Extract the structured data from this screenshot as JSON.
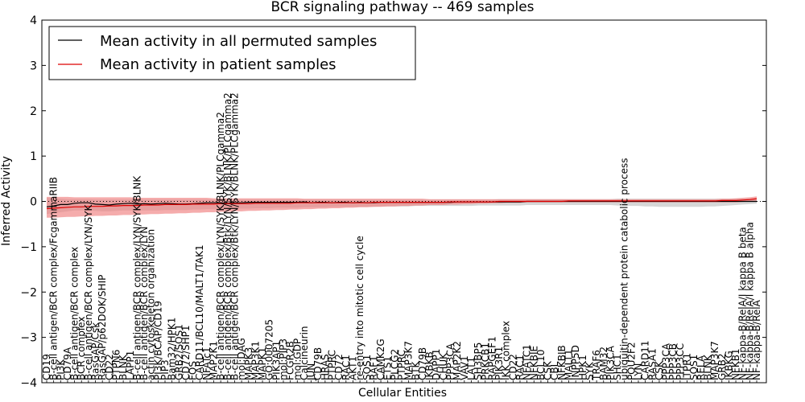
{
  "chart_data": {
    "type": "line",
    "title": "BCR signaling pathway -- 469 samples",
    "xlabel": "Cellular Entities",
    "ylabel": "Inferred Activity",
    "ylim": [
      -4,
      4
    ],
    "yticks": [
      -4,
      -3,
      -2,
      -1,
      0,
      1,
      2,
      3,
      4
    ],
    "grid": false,
    "legend_position": "top-left",
    "reference_line": 0,
    "colors": {
      "permuted_line": "#000000",
      "patient_line": "#dd0000",
      "permuted_band": "#c8c8c8",
      "patient_band": "#f08080"
    },
    "categories": [
      "CD19",
      "B-cell antigen/BCR complex/FcgammaRIIB",
      "PI3K",
      "CD79A",
      "B-cell antigen/BCR complex",
      "BCR complex",
      "B-cell antigen/BCR complex/LYN/SYK",
      "RasGAP/Csk",
      "RasGAP/p62DOK/SHIP",
      "CD22",
      "PTPN6",
      "BLNK",
      "LAPP1",
      "B-cell antigen/BCR complex/LYN/SYK/BLNK",
      "B-cell antigen/BCR complex/LYN",
      "actin cytoskeleton organization",
      "PI3K/BCAP/CD19",
      "PIP3",
      "Bam32/HPK1",
      "GRB2/SOS1",
      "CD72/SHP1",
      "FOS",
      "CARD11/BCL10/MALT1/TAK1",
      "NFATc1",
      "MAP2K1",
      "B-cell antigen/BCR complex/LYN/SYK/BLNK/PLCgamma2",
      "B-cell antigen/BCR complex/Btk/LYN/SYK/BLNK/PLCgamma2",
      "B-cell antigen/BCR complex/Btk/LYN/SYK/BLNK/PLCgamma2",
      "mol:DAG",
      "MAPK3",
      "MAP3K1",
      "MAPK1",
      "GO:0007205",
      "PIK3AP1",
      "mol:PIP3",
      "FCGR2B",
      "mol:GDP",
      "Calcineurin",
      "JUN",
      "CD79B",
      "HRAS",
      "PTPRC",
      "CD72",
      "RAC1",
      "AKT1",
      "re-entry into mitotic cell cycle",
      "SOS1",
      "RAF1",
      "CAMK2G",
      "ETS1",
      "PLCG2",
      "PTPRC",
      "MAP3K7",
      "BTK",
      "CD79B",
      "IKBKB",
      "DAPP1",
      "CHUK",
      "PPP3CA",
      "MAP2K2",
      "VAV1",
      "LAT1",
      "SH3BP5",
      "PRKCB1",
      "RAPGEF1",
      "PIK3R1",
      "IKK complex",
      "CD22",
      "RAC1",
      "NFATC1",
      "NFKBIE",
      "BCL10",
      "CSK",
      "CBL",
      "NFKBIB",
      "MALT1",
      "INPP5D",
      "HPK1",
      "SYK",
      "TRAF6",
      "BAM32",
      "PIK3CA",
      "SHC1",
      "ubiquitin-dependent protein catabolic process",
      "POU2F2",
      "LYN",
      "CARD11",
      "RASA1",
      "CSK",
      "PPP3CA",
      "PPP3CB",
      "PPP3CC",
      "ITPR1",
      "SOS1",
      "RELA",
      "BLNK",
      "MAP3K7",
      "GRB2",
      "IKBKG",
      "NFKB1",
      "NF-kappa-B/RelA/I kappa B beta",
      "NF-kappa-B/RelA/I kappa B alpha",
      "NF-kappa-B/RelA"
    ],
    "series": [
      {
        "name": "Mean activity in all permuted samples",
        "values": [
          -0.12,
          -0.1,
          -0.07,
          -0.07,
          -0.04,
          -0.03,
          -0.03,
          -0.06,
          -0.07,
          -0.08,
          -0.06,
          -0.05,
          -0.04,
          -0.06,
          -0.05,
          -0.06,
          -0.05,
          -0.04,
          -0.05,
          -0.06,
          -0.06,
          -0.05,
          -0.04,
          -0.03,
          -0.03,
          -0.03,
          -0.04,
          -0.03,
          -0.03,
          -0.02,
          -0.02,
          -0.02,
          -0.02,
          -0.02,
          -0.02,
          -0.02,
          -0.02,
          -0.01,
          -0.03,
          -0.02,
          -0.02,
          -0.03,
          -0.02,
          -0.02,
          -0.03,
          -0.02,
          -0.03,
          -0.03,
          -0.02,
          -0.02,
          -0.02,
          -0.02,
          -0.02,
          -0.02,
          -0.02,
          -0.02,
          -0.02,
          -0.02,
          -0.02,
          -0.01,
          -0.01,
          -0.01,
          -0.01,
          -0.01,
          -0.01,
          -0.01,
          -0.01,
          -0.01,
          -0.01,
          0.0,
          0.0,
          0.0,
          0.0,
          0.0,
          0.0,
          0.0,
          0.0,
          0.0,
          0.0,
          0.0,
          0.0,
          0.0,
          0.0,
          0.0,
          0.0,
          0.0,
          0.0,
          0.0,
          0.0,
          0.0,
          0.0,
          0.0,
          0.0,
          0.0,
          0.0,
          0.0,
          0.0,
          0.0,
          0.0,
          0.0,
          0.0,
          0.0,
          0.0
        ],
        "band_low": [
          -0.28,
          -0.26,
          -0.24,
          -0.22,
          -0.2,
          -0.2,
          -0.2,
          -0.21,
          -0.22,
          -0.22,
          -0.21,
          -0.2,
          -0.2,
          -0.2,
          -0.2,
          -0.2,
          -0.2,
          -0.19,
          -0.19,
          -0.19,
          -0.19,
          -0.18,
          -0.18,
          -0.17,
          -0.17,
          -0.17,
          -0.17,
          -0.16,
          -0.16,
          -0.16,
          -0.15,
          -0.15,
          -0.15,
          -0.14,
          -0.14,
          -0.14,
          -0.14,
          -0.13,
          -0.13,
          -0.13,
          -0.13,
          -0.12,
          -0.12,
          -0.12,
          -0.12,
          -0.12,
          -0.12,
          -0.12,
          -0.11,
          -0.11,
          -0.11,
          -0.11,
          -0.11,
          -0.1,
          -0.1,
          -0.1,
          -0.1,
          -0.1,
          -0.1,
          -0.1,
          -0.1,
          -0.1,
          -0.09,
          -0.09,
          -0.09,
          -0.09,
          -0.09,
          -0.09,
          -0.09,
          -0.08,
          -0.08,
          -0.08,
          -0.08,
          -0.08,
          -0.08,
          -0.08,
          -0.08,
          -0.08,
          -0.08,
          -0.08,
          -0.08,
          -0.08,
          -0.09,
          -0.09,
          -0.1,
          -0.1,
          -0.11,
          -0.11,
          -0.12,
          -0.12,
          -0.12,
          -0.12,
          -0.12,
          -0.12,
          -0.12,
          -0.11,
          -0.11,
          -0.1,
          -0.09,
          -0.08,
          -0.07,
          -0.06,
          -0.05
        ],
        "band_high": [
          0.08,
          0.07,
          0.06,
          0.05,
          0.05,
          0.05,
          0.05,
          0.04,
          0.04,
          0.04,
          0.04,
          0.04,
          0.04,
          0.04,
          0.04,
          0.04,
          0.04,
          0.04,
          0.04,
          0.04,
          0.04,
          0.04,
          0.04,
          0.04,
          0.04,
          0.04,
          0.04,
          0.04,
          0.04,
          0.04,
          0.04,
          0.04,
          0.04,
          0.04,
          0.04,
          0.04,
          0.04,
          0.04,
          0.04,
          0.04,
          0.04,
          0.04,
          0.04,
          0.04,
          0.04,
          0.04,
          0.04,
          0.04,
          0.04,
          0.04,
          0.04,
          0.04,
          0.04,
          0.04,
          0.04,
          0.04,
          0.04,
          0.04,
          0.04,
          0.04,
          0.04,
          0.04,
          0.04,
          0.04,
          0.04,
          0.05,
          0.05,
          0.05,
          0.05,
          0.05,
          0.05,
          0.05,
          0.05,
          0.05,
          0.05,
          0.05,
          0.05,
          0.05,
          0.05,
          0.05,
          0.05,
          0.05,
          0.06,
          0.06,
          0.06,
          0.06,
          0.06,
          0.06,
          0.06,
          0.06,
          0.06,
          0.06,
          0.06,
          0.06,
          0.06,
          0.06,
          0.06,
          0.06,
          0.06,
          0.06,
          0.06,
          0.06,
          0.06
        ]
      },
      {
        "name": "Mean activity in patient samples",
        "values": [
          -0.16,
          -0.15,
          -0.14,
          -0.13,
          -0.12,
          -0.12,
          -0.11,
          -0.11,
          -0.11,
          -0.1,
          -0.1,
          -0.09,
          -0.09,
          -0.09,
          -0.08,
          -0.08,
          -0.08,
          -0.07,
          -0.07,
          -0.07,
          -0.07,
          -0.06,
          -0.06,
          -0.06,
          -0.06,
          -0.05,
          -0.05,
          -0.05,
          -0.05,
          -0.05,
          -0.04,
          -0.04,
          -0.04,
          -0.04,
          -0.04,
          -0.04,
          -0.03,
          -0.03,
          -0.03,
          -0.03,
          -0.03,
          -0.03,
          -0.03,
          -0.03,
          -0.03,
          -0.03,
          -0.03,
          -0.02,
          -0.02,
          -0.02,
          -0.02,
          -0.02,
          -0.02,
          -0.02,
          -0.02,
          -0.02,
          -0.02,
          -0.02,
          -0.01,
          -0.01,
          -0.01,
          -0.01,
          -0.01,
          -0.01,
          -0.01,
          0.0,
          0.0,
          0.0,
          0.0,
          0.0,
          0.0,
          0.0,
          0.0,
          0.0,
          0.0,
          0.01,
          0.01,
          0.01,
          0.01,
          0.01,
          0.01,
          0.01,
          0.01,
          0.01,
          0.01,
          0.01,
          0.01,
          0.01,
          0.01,
          0.01,
          0.01,
          0.01,
          0.01,
          0.01,
          0.01,
          0.01,
          0.01,
          0.02,
          0.02,
          0.02,
          0.03,
          0.04,
          0.06
        ],
        "band_low": [
          -0.36,
          -0.36,
          -0.35,
          -0.34,
          -0.34,
          -0.33,
          -0.33,
          -0.32,
          -0.32,
          -0.31,
          -0.31,
          -0.3,
          -0.3,
          -0.29,
          -0.29,
          -0.28,
          -0.28,
          -0.27,
          -0.27,
          -0.26,
          -0.26,
          -0.25,
          -0.25,
          -0.24,
          -0.24,
          -0.23,
          -0.23,
          -0.22,
          -0.22,
          -0.21,
          -0.21,
          -0.2,
          -0.2,
          -0.19,
          -0.19,
          -0.18,
          -0.18,
          -0.17,
          -0.17,
          -0.16,
          -0.16,
          -0.15,
          -0.15,
          -0.14,
          -0.14,
          -0.13,
          -0.13,
          -0.12,
          -0.12,
          -0.11,
          -0.11,
          -0.1,
          -0.1,
          -0.09,
          -0.09,
          -0.08,
          -0.08,
          -0.08,
          -0.07,
          -0.07,
          -0.06,
          -0.06,
          -0.05,
          -0.05,
          -0.04,
          -0.04,
          -0.03,
          -0.03,
          -0.03,
          -0.02,
          -0.02,
          -0.02,
          -0.02,
          -0.02,
          -0.02,
          -0.02,
          -0.02,
          -0.02,
          -0.02,
          -0.02,
          -0.02,
          -0.02,
          -0.02,
          -0.02,
          -0.02,
          -0.02,
          -0.02,
          -0.02,
          -0.02,
          -0.02,
          -0.02,
          -0.02,
          -0.02,
          -0.02,
          -0.02,
          -0.02,
          -0.02,
          -0.02,
          -0.02,
          -0.02,
          -0.01,
          0.0,
          0.01
        ],
        "band_high": [
          0.1,
          0.1,
          0.1,
          0.1,
          0.09,
          0.09,
          0.09,
          0.09,
          0.09,
          0.09,
          0.09,
          0.09,
          0.09,
          0.08,
          0.08,
          0.08,
          0.08,
          0.08,
          0.08,
          0.08,
          0.08,
          0.08,
          0.08,
          0.08,
          0.07,
          0.07,
          0.07,
          0.07,
          0.07,
          0.07,
          0.07,
          0.07,
          0.07,
          0.07,
          0.07,
          0.07,
          0.07,
          0.06,
          0.06,
          0.06,
          0.06,
          0.06,
          0.06,
          0.06,
          0.06,
          0.06,
          0.06,
          0.06,
          0.06,
          0.06,
          0.06,
          0.06,
          0.06,
          0.06,
          0.06,
          0.05,
          0.05,
          0.05,
          0.05,
          0.05,
          0.05,
          0.05,
          0.05,
          0.05,
          0.05,
          0.05,
          0.05,
          0.05,
          0.05,
          0.05,
          0.05,
          0.05,
          0.05,
          0.05,
          0.05,
          0.05,
          0.05,
          0.05,
          0.05,
          0.05,
          0.05,
          0.05,
          0.05,
          0.05,
          0.05,
          0.05,
          0.05,
          0.05,
          0.05,
          0.05,
          0.05,
          0.05,
          0.05,
          0.05,
          0.05,
          0.05,
          0.05,
          0.06,
          0.06,
          0.07,
          0.08,
          0.09,
          0.11
        ]
      }
    ]
  }
}
